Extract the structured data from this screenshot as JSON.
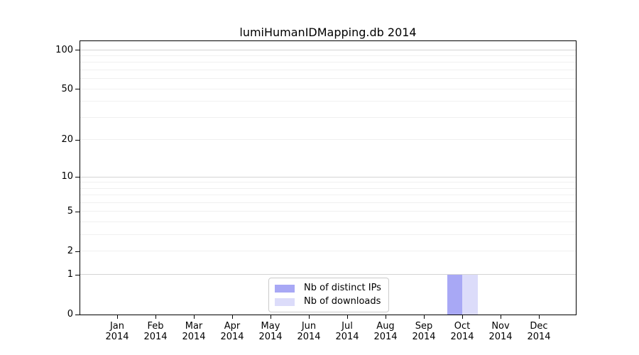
{
  "chart_data": {
    "type": "bar",
    "title": "lumiHumanIDMapping.db 2014",
    "x_month_labels": [
      "Jan",
      "Feb",
      "Mar",
      "Apr",
      "May",
      "Jun",
      "Jul",
      "Aug",
      "Sep",
      "Oct",
      "Nov",
      "Dec"
    ],
    "x_year_label": "2014",
    "series": [
      {
        "name": "Nb of distinct IPs",
        "color": "#a8a8f5",
        "values": [
          0,
          0,
          0,
          0,
          0,
          0,
          0,
          0,
          0,
          1,
          0,
          0
        ]
      },
      {
        "name": "Nb of downloads",
        "color": "#dcdcfa",
        "values": [
          0,
          0,
          0,
          0,
          0,
          0,
          0,
          0,
          0,
          1,
          0,
          0
        ]
      }
    ],
    "yscale": "log1p",
    "ylim": [
      0,
      117
    ],
    "ytick_labels": [
      0,
      1,
      2,
      5,
      10,
      20,
      50,
      100
    ],
    "y_major_gridlines": [
      1,
      10,
      100
    ],
    "y_minor_gridlines": [
      2,
      3,
      4,
      5,
      6,
      7,
      8,
      9,
      20,
      30,
      40,
      50,
      60,
      70,
      80,
      90
    ],
    "grid": "horizontal",
    "legend_position": "inside-bottom-center",
    "colors": {
      "axis": "#000000",
      "grid_major": "#d4d4d4",
      "grid_minor": "#f0f0f0",
      "background": "#ffffff",
      "legend_border": "#cbcbcb"
    }
  }
}
